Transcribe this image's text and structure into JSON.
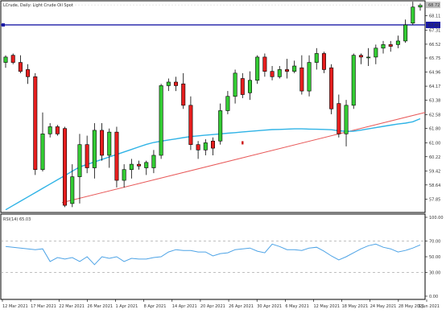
{
  "chart_data": {
    "type": "candlestick",
    "title": "LCrude, Daily:  Light Crude Oil Spot",
    "x_labels": [
      "12 Mar 2021",
      "17 Mar 2021",
      "22 Mar 2021",
      "26 Mar 2021",
      "1 Apr 2021",
      "8 Apr 2021",
      "14 Apr 2021",
      "20 Apr 2021",
      "26 Apr 2021",
      "30 Apr 2021",
      "6 May 2021",
      "12 May 2021",
      "18 May 2021",
      "24 May 2021",
      "28 May 2021",
      "3 Jun 2021"
    ],
    "price_axis": {
      "ticks": [
        57.85,
        58.64,
        59.42,
        60.22,
        61.0,
        61.8,
        62.58,
        63.38,
        64.17,
        64.96,
        65.75,
        66.52,
        67.31,
        68.11
      ],
      "ylim": [
        57.1,
        68.95
      ],
      "current_price": "68.72",
      "horizontal_level": "67.60"
    },
    "candles": [
      {
        "o": 65.5,
        "h": 65.9,
        "l": 65.2,
        "c": 65.8
      },
      {
        "o": 65.9,
        "h": 66.0,
        "l": 65.4,
        "c": 65.5
      },
      {
        "o": 65.5,
        "h": 65.9,
        "l": 64.9,
        "c": 65.0
      },
      {
        "o": 65.1,
        "h": 65.4,
        "l": 64.3,
        "c": 64.7
      },
      {
        "o": 64.7,
        "h": 64.9,
        "l": 59.2,
        "c": 59.5
      },
      {
        "o": 59.5,
        "h": 62.7,
        "l": 59.4,
        "c": 61.5
      },
      {
        "o": 61.5,
        "h": 62.1,
        "l": 61.3,
        "c": 61.9
      },
      {
        "o": 61.9,
        "h": 62.0,
        "l": 61.4,
        "c": 61.5
      },
      {
        "o": 61.8,
        "h": 61.9,
        "l": 57.4,
        "c": 57.5
      },
      {
        "o": 57.6,
        "h": 59.8,
        "l": 57.4,
        "c": 59.1
      },
      {
        "o": 59.1,
        "h": 61.5,
        "l": 57.6,
        "c": 60.9
      },
      {
        "o": 60.9,
        "h": 61.4,
        "l": 59.3,
        "c": 59.6
      },
      {
        "o": 59.6,
        "h": 62.1,
        "l": 59.0,
        "c": 61.7
      },
      {
        "o": 61.7,
        "h": 62.1,
        "l": 60.0,
        "c": 60.3
      },
      {
        "o": 60.3,
        "h": 61.8,
        "l": 59.6,
        "c": 61.6
      },
      {
        "o": 61.6,
        "h": 61.9,
        "l": 58.5,
        "c": 58.9
      },
      {
        "o": 58.9,
        "h": 59.8,
        "l": 58.5,
        "c": 59.5
      },
      {
        "o": 59.5,
        "h": 60.1,
        "l": 59.0,
        "c": 59.8
      },
      {
        "o": 59.8,
        "h": 60.0,
        "l": 59.5,
        "c": 59.7
      },
      {
        "o": 59.6,
        "h": 60.0,
        "l": 59.2,
        "c": 59.9
      },
      {
        "o": 59.6,
        "h": 60.6,
        "l": 59.3,
        "c": 60.3
      },
      {
        "o": 60.3,
        "h": 64.3,
        "l": 60.1,
        "c": 64.2
      },
      {
        "o": 64.2,
        "h": 64.6,
        "l": 63.9,
        "c": 64.4
      },
      {
        "o": 64.4,
        "h": 64.7,
        "l": 63.9,
        "c": 64.2
      },
      {
        "o": 64.3,
        "h": 64.9,
        "l": 62.9,
        "c": 63.1
      },
      {
        "o": 63.1,
        "h": 63.6,
        "l": 60.6,
        "c": 60.9
      },
      {
        "o": 60.9,
        "h": 61.1,
        "l": 60.1,
        "c": 60.6
      },
      {
        "o": 60.6,
        "h": 61.2,
        "l": 60.3,
        "c": 61.0
      },
      {
        "o": 61.1,
        "h": 61.3,
        "l": 60.3,
        "c": 60.7
      },
      {
        "o": 61.1,
        "h": 63.2,
        "l": 60.9,
        "c": 62.8
      },
      {
        "o": 62.8,
        "h": 63.9,
        "l": 62.6,
        "c": 63.6
      },
      {
        "o": 63.6,
        "h": 65.1,
        "l": 63.2,
        "c": 64.9
      },
      {
        "o": 64.6,
        "h": 64.9,
        "l": 63.5,
        "c": 63.7
      },
      {
        "o": 63.8,
        "h": 65.0,
        "l": 63.4,
        "c": 64.5
      },
      {
        "o": 64.5,
        "h": 65.9,
        "l": 64.3,
        "c": 65.8
      },
      {
        "o": 65.8,
        "h": 66.0,
        "l": 64.7,
        "c": 65.0
      },
      {
        "o": 65.0,
        "h": 65.3,
        "l": 64.5,
        "c": 64.7
      },
      {
        "o": 64.7,
        "h": 65.3,
        "l": 64.6,
        "c": 65.1
      },
      {
        "o": 65.1,
        "h": 65.7,
        "l": 64.6,
        "c": 65.0
      },
      {
        "o": 65.0,
        "h": 65.6,
        "l": 64.9,
        "c": 65.3
      },
      {
        "o": 65.2,
        "h": 65.9,
        "l": 63.7,
        "c": 63.9
      },
      {
        "o": 63.9,
        "h": 65.9,
        "l": 63.6,
        "c": 65.5
      },
      {
        "o": 65.5,
        "h": 66.3,
        "l": 65.1,
        "c": 66.0
      },
      {
        "o": 66.0,
        "h": 66.1,
        "l": 64.9,
        "c": 65.1
      },
      {
        "o": 65.2,
        "h": 65.4,
        "l": 62.6,
        "c": 62.9
      },
      {
        "o": 63.2,
        "h": 63.7,
        "l": 61.3,
        "c": 61.5
      },
      {
        "o": 61.5,
        "h": 63.4,
        "l": 60.8,
        "c": 63.1
      },
      {
        "o": 63.1,
        "h": 66.0,
        "l": 62.9,
        "c": 65.9
      },
      {
        "o": 65.9,
        "h": 66.0,
        "l": 65.4,
        "c": 65.8
      },
      {
        "o": 65.8,
        "h": 66.3,
        "l": 65.3,
        "c": 65.8
      },
      {
        "o": 65.8,
        "h": 66.5,
        "l": 65.4,
        "c": 66.3
      },
      {
        "o": 66.3,
        "h": 66.7,
        "l": 66.0,
        "c": 66.5
      },
      {
        "o": 66.5,
        "h": 66.7,
        "l": 66.1,
        "c": 66.4
      },
      {
        "o": 66.5,
        "h": 67.0,
        "l": 66.3,
        "c": 66.7
      },
      {
        "o": 66.7,
        "h": 67.9,
        "l": 66.6,
        "c": 67.6
      },
      {
        "o": 67.7,
        "h": 68.9,
        "l": 67.6,
        "c": 68.6
      },
      {
        "o": 68.6,
        "h": 68.8,
        "l": 68.4,
        "c": 68.7
      }
    ],
    "moving_average": [
      57.25,
      57.49,
      57.73,
      57.97,
      58.21,
      58.45,
      58.69,
      58.93,
      59.17,
      59.41,
      59.65,
      59.79,
      59.93,
      60.07,
      60.21,
      60.35,
      60.49,
      60.63,
      60.77,
      60.91,
      61.02,
      61.09,
      61.16,
      61.22,
      61.29,
      61.35,
      61.39,
      61.43,
      61.46,
      61.5,
      61.54,
      61.57,
      61.61,
      61.64,
      61.68,
      61.71,
      61.74,
      61.75,
      61.77,
      61.78,
      61.78,
      61.77,
      61.76,
      61.75,
      61.73,
      61.68,
      61.64,
      61.65,
      61.71,
      61.78,
      61.85,
      61.92,
      61.99,
      62.05,
      62.1,
      62.18,
      62.35
    ],
    "trendline": {
      "start": 57.65,
      "end": 62.7
    },
    "marker_candle": 32,
    "marker_value": 61.0,
    "rsi": {
      "label": "RSI(14) 65.03",
      "ticks": [
        100.0,
        70.0,
        50.0,
        30.0,
        0.0
      ],
      "levels": [
        70,
        30
      ],
      "values": [
        63,
        62,
        61,
        60,
        59,
        60,
        44,
        49,
        47,
        49,
        44,
        50,
        40,
        50,
        48,
        50,
        44,
        48,
        47,
        47,
        49,
        50,
        56,
        59,
        58,
        58,
        56,
        56,
        51,
        54,
        55,
        59,
        60,
        61,
        57,
        55,
        66,
        63,
        59,
        59,
        58,
        61,
        62,
        57,
        51,
        46,
        50,
        55,
        60,
        64,
        66,
        62,
        60,
        56,
        58,
        61,
        65
      ]
    }
  }
}
